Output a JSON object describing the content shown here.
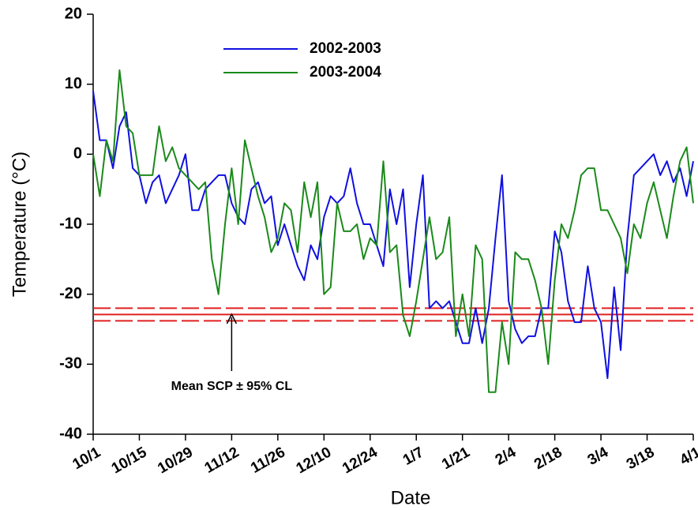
{
  "chart_data": {
    "type": "line",
    "xlabel": "Date",
    "ylabel": "Temperature (°C)",
    "categories": [
      "10/1",
      null,
      null,
      null,
      null,
      null,
      null,
      "10/15",
      null,
      null,
      null,
      null,
      null,
      null,
      "10/29",
      null,
      null,
      null,
      null,
      null,
      null,
      "11/12",
      null,
      null,
      null,
      null,
      null,
      null,
      "11/26",
      null,
      null,
      null,
      null,
      null,
      null,
      "12/10",
      null,
      null,
      null,
      null,
      null,
      null,
      "12/24",
      null,
      null,
      null,
      null,
      null,
      null,
      "1/7",
      null,
      null,
      null,
      null,
      null,
      null,
      "1/21",
      null,
      null,
      null,
      null,
      null,
      null,
      "2/4",
      null,
      null,
      null,
      null,
      null,
      null,
      "2/18",
      null,
      null,
      null,
      null,
      null,
      null,
      "3/4",
      null,
      null,
      null,
      null,
      null,
      null,
      "3/18",
      null,
      null,
      null,
      null,
      null,
      null,
      "4/1"
    ],
    "series": [
      {
        "name": "2002-2003",
        "color": "#1010e0",
        "values": [
          9,
          2,
          2,
          -2,
          4,
          6,
          -2,
          -3,
          -7,
          -4,
          -3,
          -7,
          -5,
          -3,
          0,
          -8,
          -8,
          -5,
          -4,
          -3,
          -3,
          -7,
          -9,
          -10,
          -5,
          -4,
          -7,
          -6,
          -13,
          -10,
          -13,
          -16,
          -18,
          -13,
          -15,
          -9,
          -6,
          -7,
          -6,
          -2,
          -7,
          -10,
          -10,
          -13,
          -16,
          -5,
          -10,
          -5,
          -19,
          -10,
          -3,
          -22,
          -21,
          -22,
          -21,
          -24,
          -27,
          -27,
          -22,
          -27,
          -22,
          -12,
          -3,
          -21,
          -25,
          -27,
          -26,
          -26,
          -22,
          -22,
          -11,
          -14,
          -21,
          -24,
          -24,
          -16,
          -22,
          -24,
          -32,
          -19,
          -28,
          -12,
          -3,
          -2,
          -1,
          0,
          -3,
          -1,
          -4,
          -2,
          -6,
          -1
        ]
      },
      {
        "name": "2003-2004",
        "color": "#1a8a1a",
        "values": [
          0,
          -6,
          2,
          -1,
          12,
          4,
          3,
          -3,
          -3,
          -3,
          4,
          -1,
          1,
          -2,
          -3,
          -4,
          -5,
          -4,
          -15,
          -20,
          -10,
          -2,
          -10,
          2,
          -2,
          -6,
          -9,
          -14,
          -12,
          -7,
          -8,
          -14,
          -4,
          -9,
          -4,
          -20,
          -19,
          -7,
          -11,
          -11,
          -10,
          -15,
          -12,
          -13,
          -1,
          -14,
          -13,
          -23,
          -26,
          -21,
          -15,
          -9,
          -15,
          -14,
          -9,
          -26,
          -20,
          -26,
          -13,
          -15,
          -34,
          -34,
          -24,
          -30,
          -14,
          -15,
          -15,
          -18,
          -22,
          -30,
          -18,
          -10,
          -12,
          -8,
          -3,
          -2,
          -2,
          -8,
          -8,
          -10,
          -12,
          -17,
          -10,
          -12,
          -7,
          -4,
          -8,
          -12,
          -6,
          -1,
          1,
          -7
        ]
      }
    ],
    "reference_lines": [
      {
        "value": -22,
        "color": "#e02020",
        "style": "dashed"
      },
      {
        "value": -22.9,
        "color": "#e02020",
        "style": "solid"
      },
      {
        "value": -23.8,
        "color": "#e02020",
        "style": "dashed"
      }
    ],
    "annotation": {
      "text": "Mean SCP ± 95% CL",
      "category_index": 21
    },
    "ylim": [
      -40,
      20
    ],
    "yticks": [
      -40,
      -30,
      -20,
      -10,
      0,
      10,
      20
    ],
    "grid": false,
    "legend": "upper left"
  }
}
